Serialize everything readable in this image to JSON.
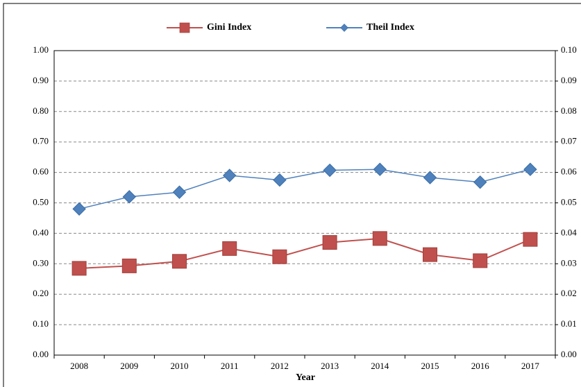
{
  "chart_data": {
    "type": "line",
    "x_label": "Year",
    "categories": [
      "2008",
      "2009",
      "2010",
      "2011",
      "2012",
      "2013",
      "2014",
      "2015",
      "2016",
      "2017"
    ],
    "series": [
      {
        "name": "Gini Index",
        "color": "#c0504d",
        "marker": "square",
        "values": [
          0.285,
          0.293,
          0.308,
          0.35,
          0.323,
          0.37,
          0.383,
          0.33,
          0.31,
          0.38
        ]
      },
      {
        "name": "Theil Index",
        "color": "#4f81bd",
        "marker": "diamond",
        "axis": "y2",
        "values": [
          0.048,
          0.052,
          0.0535,
          0.059,
          0.0575,
          0.0607,
          0.061,
          0.0583,
          0.0568,
          0.061
        ]
      }
    ],
    "ylim": [
      0,
      1
    ],
    "yticks": [
      {
        "value": 0,
        "label": "0.00"
      },
      {
        "value": 0.1,
        "label": "0.10"
      },
      {
        "value": 0.2,
        "label": "0.20"
      },
      {
        "value": 0.3,
        "label": "0.30"
      },
      {
        "value": 0.4,
        "label": "0.40"
      },
      {
        "value": 0.5,
        "label": "0.50"
      },
      {
        "value": 0.6,
        "label": "0.60"
      },
      {
        "value": 0.7,
        "label": "0.70"
      },
      {
        "value": 0.8,
        "label": "0.80"
      },
      {
        "value": 0.9,
        "label": "0.90"
      },
      {
        "value": 1,
        "label": "1.00"
      }
    ],
    "y2lim": [
      0,
      0.1
    ],
    "y2ticks": [
      {
        "value": 0,
        "label": "0.00"
      },
      {
        "value": 0.01,
        "label": "0.01"
      },
      {
        "value": 0.02,
        "label": "0.02"
      },
      {
        "value": 0.03,
        "label": "0.03"
      },
      {
        "value": 0.04,
        "label": "0.04"
      },
      {
        "value": 0.05,
        "label": "0.05"
      },
      {
        "value": 0.06,
        "label": "0.06"
      },
      {
        "value": 0.07,
        "label": "0.07"
      },
      {
        "value": 0.08,
        "label": "0.08"
      },
      {
        "value": 0.09,
        "label": "0.09"
      },
      {
        "value": 0.1,
        "label": "0.10"
      }
    ],
    "grid": true,
    "legend": "top"
  }
}
